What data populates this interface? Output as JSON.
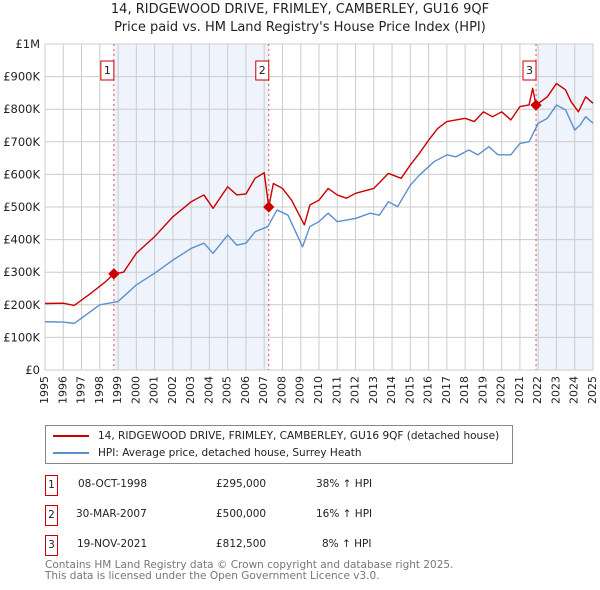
{
  "title": "14, RIDGEWOOD DRIVE, FRIMLEY, CAMBERLEY, GU16 9QF",
  "subtitle": "Price paid vs. HM Land Registry's House Price Index (HPI)",
  "chart_data": {
    "type": "line",
    "xlim": [
      1995,
      2025
    ],
    "ylim": [
      0,
      1000000
    ],
    "x_ticks": [
      "1995",
      "1996",
      "1997",
      "1998",
      "1999",
      "2000",
      "2001",
      "2002",
      "2003",
      "2004",
      "2005",
      "2006",
      "2007",
      "2008",
      "2009",
      "2010",
      "2011",
      "2012",
      "2013",
      "2014",
      "2015",
      "2016",
      "2017",
      "2018",
      "2019",
      "2020",
      "2021",
      "2022",
      "2023",
      "2024",
      "2025"
    ],
    "y_ticks": [
      {
        "v": 0,
        "label": "£0"
      },
      {
        "v": 100000,
        "label": "£100K"
      },
      {
        "v": 200000,
        "label": "£200K"
      },
      {
        "v": 300000,
        "label": "£300K"
      },
      {
        "v": 400000,
        "label": "£400K"
      },
      {
        "v": 500000,
        "label": "£500K"
      },
      {
        "v": 600000,
        "label": "£600K"
      },
      {
        "v": 700000,
        "label": "£700K"
      },
      {
        "v": 800000,
        "label": "£800K"
      },
      {
        "v": 900000,
        "label": "£900K"
      },
      {
        "v": 1000000,
        "label": "£1M"
      }
    ],
    "grid": true,
    "series": [
      {
        "name": "14, RIDGEWOOD DRIVE, FRIMLEY, CAMBERLEY, GU16 9QF (detached house)",
        "color": "#cc0000",
        "x": [
          1995,
          1996,
          1996.6,
          1997.5,
          1998.3,
          1998.77,
          1999.3,
          2000,
          2001,
          2002,
          2003,
          2003.7,
          2004.2,
          2005,
          2005.5,
          2006,
          2006.5,
          2007.0,
          2007.25,
          2007.5,
          2008,
          2008.5,
          2009.2,
          2009.5,
          2010,
          2010.5,
          2011,
          2011.5,
          2012,
          2013,
          2013.8,
          2014.5,
          2015,
          2015.5,
          2016,
          2016.5,
          2017,
          2018,
          2018.5,
          2019,
          2019.5,
          2020,
          2020.5,
          2021,
          2021.5,
          2021.7,
          2021.88,
          2022.5,
          2023,
          2023.5,
          2023.8,
          2024.2,
          2024.6,
          2025
        ],
        "y": [
          204000,
          205000,
          198000,
          235000,
          270000,
          295000,
          300000,
          358000,
          409000,
          470000,
          516000,
          537000,
          496000,
          562000,
          537000,
          540000,
          588000,
          605000,
          500000,
          572000,
          557000,
          521000,
          445000,
          506000,
          521000,
          557000,
          537000,
          527000,
          542000,
          557000,
          603000,
          588000,
          629000,
          665000,
          705000,
          741000,
          762000,
          772000,
          762000,
          792000,
          777000,
          792000,
          767000,
          808000,
          813000,
          864000,
          812500,
          838000,
          879000,
          859000,
          823000,
          792000,
          838000,
          818000
        ]
      },
      {
        "name": "HPI: Average price, detached house, Surrey Heath",
        "color": "#5b8fd0",
        "x": [
          1995,
          1996,
          1996.6,
          1998,
          1999,
          2000,
          2001,
          2002,
          2003,
          2003.7,
          2004.2,
          2005,
          2005.5,
          2006,
          2006.5,
          2007.2,
          2007.7,
          2008.3,
          2009.1,
          2009.5,
          2010,
          2010.5,
          2011,
          2012,
          2012.8,
          2013.3,
          2013.8,
          2014.3,
          2015,
          2015.5,
          2016.3,
          2017,
          2017.5,
          2018.2,
          2018.7,
          2019.3,
          2019.8,
          2020.5,
          2021,
          2021.5,
          2022,
          2022.5,
          2023,
          2023.5,
          2024,
          2024.3,
          2024.6,
          2025
        ],
        "y": [
          148000,
          147000,
          143000,
          200000,
          210000,
          261000,
          297000,
          337000,
          373000,
          389000,
          358000,
          414000,
          383000,
          389000,
          424000,
          440000,
          491000,
          475000,
          378000,
          440000,
          455000,
          481000,
          455000,
          465000,
          481000,
          475000,
          516000,
          501000,
          567000,
          598000,
          639000,
          660000,
          654000,
          675000,
          660000,
          685000,
          660000,
          660000,
          695000,
          700000,
          757000,
          772000,
          813000,
          798000,
          736000,
          752000,
          777000,
          757000
        ]
      }
    ],
    "sales": [
      {
        "label": "1",
        "x": 1998.77,
        "y": 295000
      },
      {
        "label": "2",
        "x": 2007.25,
        "y": 500000
      },
      {
        "label": "3",
        "x": 2021.88,
        "y": 812500
      }
    ],
    "shaded": [
      [
        1998.77,
        2007.25
      ],
      [
        2021.88,
        2025
      ]
    ]
  },
  "legend": {
    "property": "14, RIDGEWOOD DRIVE, FRIMLEY, CAMBERLEY, GU16 9QF (detached house)",
    "hpi": "HPI: Average price, detached house, Surrey Heath"
  },
  "transactions": [
    {
      "num": "1",
      "date": "08-OCT-1998",
      "price": "£295,000",
      "hpi": "38% ↑ HPI"
    },
    {
      "num": "2",
      "date": "30-MAR-2007",
      "price": "£500,000",
      "hpi": "16% ↑ HPI"
    },
    {
      "num": "3",
      "date": "19-NOV-2021",
      "price": "£812,500",
      "hpi": "8% ↑ HPI"
    }
  ],
  "footer": {
    "line1": "Contains HM Land Registry data © Crown copyright and database right 2025.",
    "line2": "This data is licensed under the Open Government Licence v3.0."
  }
}
